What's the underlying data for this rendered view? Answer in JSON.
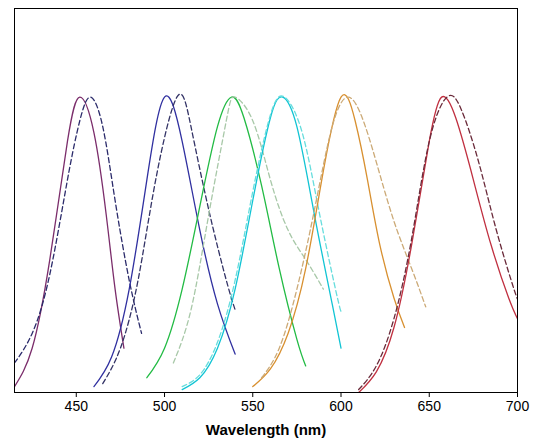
{
  "chart_data": {
    "type": "line",
    "x_label": "Wavelength (nm)",
    "xlim": [
      415,
      700
    ],
    "xticks": [
      450,
      500,
      550,
      600,
      650,
      700
    ],
    "ylim": [
      0,
      1.3
    ],
    "yticks": [],
    "tick_labels": "x",
    "grid": false,
    "series": [
      {
        "color": "#7b2d6b",
        "line_style": "solid",
        "x": [
          415,
          425,
          435,
          445,
          452,
          460,
          467,
          472,
          477
        ],
        "values": [
          0.02,
          0.15,
          0.45,
          0.85,
          1.0,
          0.88,
          0.6,
          0.35,
          0.15
        ]
      },
      {
        "color": "#2b2b6b",
        "line_style": "dashed",
        "x": [
          415,
          425,
          435,
          445,
          452,
          458,
          465,
          472,
          480,
          487
        ],
        "values": [
          0.1,
          0.2,
          0.4,
          0.72,
          0.92,
          1.0,
          0.9,
          0.65,
          0.38,
          0.2
        ]
      },
      {
        "color": "#3030a0",
        "line_style": "solid",
        "x": [
          460,
          470,
          480,
          490,
          500,
          510,
          520,
          530,
          540
        ],
        "values": [
          0.02,
          0.12,
          0.35,
          0.72,
          1.0,
          0.85,
          0.55,
          0.3,
          0.13
        ]
      },
      {
        "color": "#333366",
        "line_style": "dashed",
        "x": [
          465,
          475,
          485,
          495,
          507,
          515,
          525,
          535,
          540
        ],
        "values": [
          0.03,
          0.15,
          0.38,
          0.72,
          1.0,
          0.9,
          0.62,
          0.38,
          0.28
        ]
      },
      {
        "color": "#22bb44",
        "line_style": "solid",
        "x": [
          490,
          500,
          510,
          520,
          530,
          538,
          545,
          555,
          565,
          575,
          580
        ],
        "values": [
          0.05,
          0.15,
          0.35,
          0.63,
          0.9,
          1.0,
          0.93,
          0.7,
          0.42,
          0.18,
          0.09
        ]
      },
      {
        "color": "#a8c8a8",
        "line_style": "dashed",
        "x": [
          505,
          515,
          525,
          535,
          540,
          550,
          560,
          570,
          580,
          590
        ],
        "values": [
          0.1,
          0.28,
          0.6,
          0.92,
          1.0,
          0.92,
          0.72,
          0.55,
          0.45,
          0.35
        ]
      },
      {
        "color": "#11c4d4",
        "line_style": "solid",
        "x": [
          510,
          520,
          530,
          540,
          550,
          560,
          567,
          575,
          585,
          595,
          600
        ],
        "values": [
          0.01,
          0.05,
          0.15,
          0.35,
          0.65,
          0.93,
          1.0,
          0.9,
          0.6,
          0.3,
          0.15
        ]
      },
      {
        "color": "#66dddd",
        "line_style": "dashed",
        "x": [
          510,
          520,
          530,
          540,
          550,
          560,
          568,
          578,
          588,
          598,
          600
        ],
        "values": [
          0.02,
          0.06,
          0.17,
          0.38,
          0.68,
          0.94,
          1.0,
          0.88,
          0.6,
          0.32,
          0.28
        ]
      },
      {
        "color": "#d89030",
        "line_style": "solid",
        "x": [
          550,
          560,
          570,
          580,
          590,
          600,
          608,
          615,
          622,
          630,
          636
        ],
        "values": [
          0.02,
          0.08,
          0.2,
          0.42,
          0.75,
          1.0,
          0.92,
          0.72,
          0.5,
          0.32,
          0.22
        ]
      },
      {
        "color": "#ccaa77",
        "line_style": "dashed",
        "x": [
          555,
          565,
          575,
          585,
          595,
          604,
          612,
          620,
          630,
          640,
          648
        ],
        "values": [
          0.05,
          0.15,
          0.35,
          0.62,
          0.9,
          1.0,
          0.93,
          0.78,
          0.58,
          0.42,
          0.29
        ]
      },
      {
        "color": "#c03040",
        "line_style": "solid",
        "x": [
          610,
          620,
          630,
          640,
          650,
          657,
          665,
          675,
          685,
          695,
          700
        ],
        "values": [
          0.0,
          0.07,
          0.22,
          0.5,
          0.85,
          1.0,
          0.93,
          0.72,
          0.5,
          0.32,
          0.25
        ]
      },
      {
        "color": "#6a2a3a",
        "line_style": "dashed",
        "x": [
          610,
          620,
          630,
          640,
          650,
          660,
          668,
          678,
          688,
          698,
          700
        ],
        "values": [
          0.01,
          0.09,
          0.25,
          0.52,
          0.85,
          1.0,
          0.96,
          0.78,
          0.55,
          0.35,
          0.32
        ]
      }
    ]
  }
}
